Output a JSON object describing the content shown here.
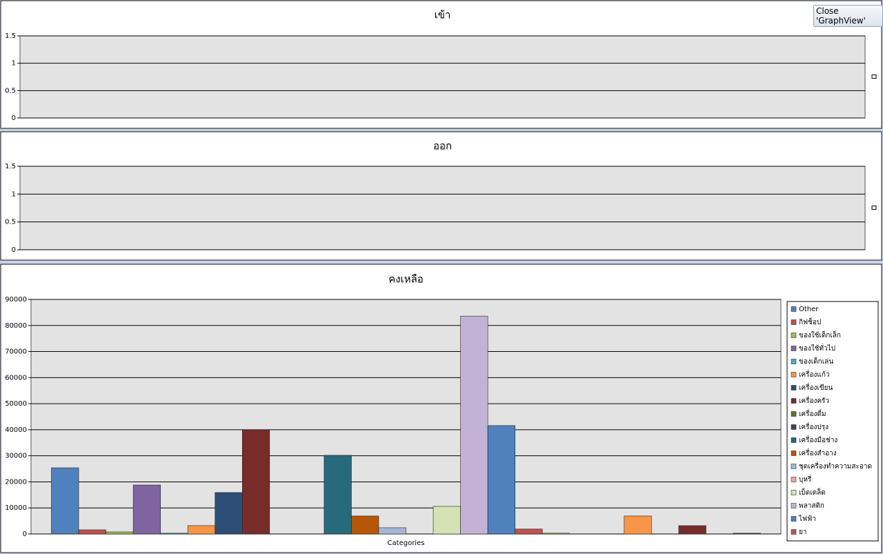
{
  "button": {
    "label": "Close 'GraphView'"
  },
  "chart_data": [
    {
      "type": "bar",
      "title": "เข้า",
      "series": [],
      "ylim": [
        0,
        1.5
      ],
      "yticks": [
        0,
        0.5,
        1,
        1.5
      ],
      "grid": true
    },
    {
      "type": "bar",
      "title": "ออก",
      "series": [],
      "ylim": [
        0,
        1.5
      ],
      "yticks": [
        0,
        0.5,
        1,
        1.5
      ],
      "grid": true
    },
    {
      "type": "bar",
      "title": "คงเหลือ",
      "x_label": "Categories",
      "ylim": [
        0,
        90000
      ],
      "yticks": [
        0,
        10000,
        20000,
        30000,
        40000,
        50000,
        60000,
        70000,
        80000,
        90000
      ],
      "grid": true,
      "legend": "right",
      "series": [
        {
          "name": "Other",
          "color": "#4f81bd",
          "values": [
            25400
          ]
        },
        {
          "name": "กิฟช็อป",
          "color": "#c0504d",
          "values": [
            1600
          ]
        },
        {
          "name": "ของใช้เด็กเล็ก",
          "color": "#9bbb59",
          "values": [
            800
          ]
        },
        {
          "name": "ของใช้ทั่วไป",
          "color": "#8064a2",
          "values": [
            18800
          ]
        },
        {
          "name": "ของเด็กเล่น",
          "color": "#4bacc6",
          "values": [
            300
          ]
        },
        {
          "name": "เครื่องแก้ว",
          "color": "#f79646",
          "values": [
            3200
          ]
        },
        {
          "name": "เครื่องเขียน",
          "color": "#2c4d75",
          "values": [
            15900
          ]
        },
        {
          "name": "เครื่องครัว",
          "color": "#772c2a",
          "values": [
            40000
          ]
        },
        {
          "name": "เครื่องดื่ม",
          "color": "#5f7530",
          "values": [
            0
          ]
        },
        {
          "name": "เครื่องปรุง",
          "color": "#4d3b62",
          "values": [
            0
          ]
        },
        {
          "name": "เครื่องมือช่าง",
          "color": "#276a7c",
          "values": [
            30200
          ]
        },
        {
          "name": "เครื่องสำอาง",
          "color": "#b65708",
          "values": [
            6900
          ]
        },
        {
          "name": "ชุดเครื่องทำความสะอาด",
          "color": "#a5b6d6",
          "values": [
            2400
          ]
        },
        {
          "name": "บุหรี่",
          "color": "#e7a9a7",
          "values": [
            0
          ]
        },
        {
          "name": "เบ็ดเตล็ด",
          "color": "#d3e3b3",
          "values": [
            10600
          ]
        },
        {
          "name": "พลาสติก",
          "color": "#c2b3d6",
          "values": [
            83600
          ]
        },
        {
          "name": "ไฟฟ้า",
          "color": "#4f81bd",
          "values": [
            41600
          ]
        },
        {
          "name": "ยา",
          "color": "#c0504d",
          "values": [
            1900
          ]
        },
        {
          "color": "#9bbb59",
          "values": [
            300
          ]
        },
        {
          "color": "#8064a2",
          "values": [
            0
          ]
        },
        {
          "color": "#4bacc6",
          "values": [
            0
          ]
        },
        {
          "color": "#f79646",
          "values": [
            6900
          ]
        },
        {
          "color": "#2c4d75",
          "values": [
            0
          ]
        },
        {
          "color": "#772c2a",
          "values": [
            3200
          ]
        },
        {
          "color": "#5f7530",
          "values": [
            0
          ]
        },
        {
          "color": "#4d3b62",
          "values": [
            300
          ]
        }
      ]
    }
  ]
}
